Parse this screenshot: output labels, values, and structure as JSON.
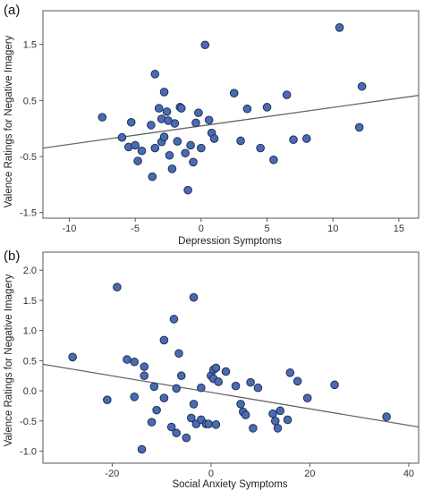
{
  "chart_data": [
    {
      "panel": "(a)",
      "type": "scatter",
      "xlabel": "Depression Symptoms",
      "ylabel": "Valence Ratings for Negative Imagery",
      "xlim": [
        -12,
        16.5
      ],
      "ylim": [
        -1.6,
        2.1
      ],
      "xticks": [
        -10,
        -5,
        0,
        5,
        10,
        15
      ],
      "yticks": [
        -1.5,
        -0.5,
        0.5,
        1.5
      ],
      "fit_line": [
        [
          -12,
          -0.35
        ],
        [
          16.5,
          0.59
        ]
      ],
      "points": [
        [
          -7.5,
          0.2
        ],
        [
          -6,
          -0.16
        ],
        [
          -5.5,
          -0.33
        ],
        [
          -5.3,
          0.11
        ],
        [
          -5,
          -0.3
        ],
        [
          -4.8,
          -0.58
        ],
        [
          -4.5,
          -0.4
        ],
        [
          -3.8,
          0.06
        ],
        [
          -3.5,
          -0.35
        ],
        [
          -3.7,
          -0.86
        ],
        [
          -3.5,
          0.97
        ],
        [
          -3.2,
          0.36
        ],
        [
          -3,
          0.17
        ],
        [
          -3,
          -0.24
        ],
        [
          -2.8,
          -0.15
        ],
        [
          -2.8,
          0.65
        ],
        [
          -2.6,
          0.3
        ],
        [
          -2.5,
          0.14
        ],
        [
          -2.4,
          -0.48
        ],
        [
          -2.2,
          -0.72
        ],
        [
          -2,
          0.09
        ],
        [
          -1.8,
          -0.23
        ],
        [
          -1.6,
          0.38
        ],
        [
          -1.5,
          0.36
        ],
        [
          -1.2,
          -0.44
        ],
        [
          -1,
          -1.1
        ],
        [
          -0.8,
          -0.3
        ],
        [
          -0.6,
          -0.6
        ],
        [
          -0.4,
          0.1
        ],
        [
          -0.2,
          0.28
        ],
        [
          0,
          -0.35
        ],
        [
          0.3,
          1.49
        ],
        [
          0.6,
          0.15
        ],
        [
          0.8,
          -0.08
        ],
        [
          1,
          -0.18
        ],
        [
          2.5,
          0.63
        ],
        [
          3,
          -0.22
        ],
        [
          3.5,
          0.35
        ],
        [
          4.5,
          -0.35
        ],
        [
          5,
          0.38
        ],
        [
          5.5,
          -0.56
        ],
        [
          6.5,
          0.6
        ],
        [
          7,
          -0.2
        ],
        [
          8,
          -0.18
        ],
        [
          10.5,
          1.8
        ],
        [
          12,
          0.02
        ],
        [
          12.2,
          0.75
        ]
      ]
    },
    {
      "panel": "(b)",
      "type": "scatter",
      "xlabel": "Social Anxiety Symptoms",
      "ylabel": "Valence Ratings for Negative Imagery",
      "xlim": [
        -34,
        42
      ],
      "ylim": [
        -1.2,
        2.3
      ],
      "xticks": [
        -20,
        0,
        20,
        40
      ],
      "yticks": [
        -1.0,
        -0.5,
        0.0,
        0.5,
        1.0,
        1.5,
        2.0
      ],
      "fit_line": [
        [
          -34,
          0.44
        ],
        [
          42,
          -0.6
        ]
      ],
      "points": [
        [
          -28,
          0.56
        ],
        [
          -21,
          -0.15
        ],
        [
          -19,
          1.72
        ],
        [
          -17,
          0.52
        ],
        [
          -15.5,
          0.48
        ],
        [
          -15.5,
          -0.1
        ],
        [
          -14,
          -0.97
        ],
        [
          -13.5,
          0.4
        ],
        [
          -13.5,
          0.25
        ],
        [
          -12,
          -0.52
        ],
        [
          -11.5,
          0.07
        ],
        [
          -11,
          -0.32
        ],
        [
          -9.5,
          0.84
        ],
        [
          -9.5,
          -0.12
        ],
        [
          -8,
          -0.6
        ],
        [
          -7.5,
          1.19
        ],
        [
          -7,
          0.04
        ],
        [
          -7,
          -0.7
        ],
        [
          -6.5,
          0.62
        ],
        [
          -6,
          0.25
        ],
        [
          -5,
          -0.78
        ],
        [
          -4,
          -0.45
        ],
        [
          -3.5,
          1.55
        ],
        [
          -3.5,
          -0.22
        ],
        [
          -3,
          -0.55
        ],
        [
          -2,
          -0.48
        ],
        [
          -2,
          0.05
        ],
        [
          -1,
          -0.55
        ],
        [
          -0.5,
          -0.55
        ],
        [
          0,
          0.25
        ],
        [
          0.5,
          0.35
        ],
        [
          0.5,
          0.2
        ],
        [
          1,
          0.38
        ],
        [
          1,
          -0.56
        ],
        [
          1.5,
          0.15
        ],
        [
          3,
          0.32
        ],
        [
          5,
          0.08
        ],
        [
          6,
          -0.22
        ],
        [
          6.5,
          -0.35
        ],
        [
          7,
          -0.4
        ],
        [
          8,
          0.14
        ],
        [
          8.5,
          -0.62
        ],
        [
          9.5,
          0.05
        ],
        [
          12.5,
          -0.38
        ],
        [
          13,
          -0.5
        ],
        [
          13.5,
          -0.62
        ],
        [
          14,
          -0.33
        ],
        [
          15.5,
          -0.48
        ],
        [
          16,
          0.3
        ],
        [
          17.5,
          0.16
        ],
        [
          19.5,
          -0.12
        ],
        [
          25,
          0.1
        ],
        [
          35.5,
          -0.43
        ]
      ]
    }
  ]
}
